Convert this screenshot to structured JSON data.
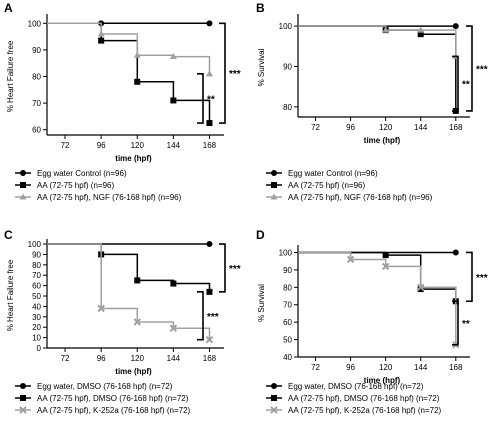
{
  "chart_data": [
    {
      "panel": "A",
      "type": "line",
      "ylabel": "% Heart Failure free",
      "xlabel": "time (hpf)",
      "xticks": [
        72,
        96,
        120,
        144,
        168
      ],
      "xlim": [
        60,
        175
      ],
      "yticks": [
        60,
        70,
        80,
        90,
        100
      ],
      "ylim": [
        58,
        102
      ],
      "series": [
        {
          "name": "Egg water Control (n=96)",
          "marker": "circle",
          "color": "#000000",
          "x": [
            96,
            168
          ],
          "y": [
            100,
            100
          ],
          "step": [
            [
              60,
              100
            ],
            [
              96,
              100
            ],
            [
              168,
              100
            ]
          ]
        },
        {
          "name": "AA (72-75 hpf) (n=96)",
          "marker": "square",
          "color": "#000000",
          "x": [
            96,
            120,
            144,
            168
          ],
          "y": [
            93.5,
            78,
            71,
            62.5
          ],
          "step": [
            [
              60,
              100
            ],
            [
              96,
              100
            ],
            [
              96,
              93.5
            ],
            [
              120,
              93.5
            ],
            [
              120,
              78
            ],
            [
              144,
              78
            ],
            [
              144,
              71
            ],
            [
              168,
              71
            ],
            [
              168,
              62.5
            ]
          ]
        },
        {
          "name": "AA (72-75 hpf), NGF (76-168 hpf) (n=96)",
          "marker": "triangle",
          "color": "#a0a0a0",
          "x": [
            96,
            120,
            144,
            168
          ],
          "y": [
            96,
            88,
            87.5,
            81
          ],
          "step": [
            [
              60,
              100
            ],
            [
              96,
              100
            ],
            [
              96,
              96
            ],
            [
              120,
              96
            ],
            [
              120,
              88
            ],
            [
              144,
              88
            ],
            [
              144,
              87.5
            ],
            [
              168,
              87.5
            ],
            [
              168,
              81
            ]
          ]
        }
      ],
      "brackets": [
        {
          "label": "***",
          "y_top": 100,
          "y_bottom": 62.5,
          "outer": true
        },
        {
          "label": "**",
          "y_top": 81,
          "y_bottom": 62.5,
          "outer": false
        }
      ]
    },
    {
      "panel": "B",
      "type": "line",
      "ylabel": "% Survival",
      "xlabel": "time (hpf)",
      "xticks": [
        72,
        96,
        120,
        144,
        168
      ],
      "xlim": [
        60,
        175
      ],
      "yticks": [
        80,
        90,
        100
      ],
      "ylim": [
        77.5,
        102
      ],
      "series": [
        {
          "name": "Egg water Control (n=96)",
          "marker": "circle",
          "color": "#000000",
          "x": [
            168
          ],
          "y": [
            100
          ],
          "step": [
            [
              60,
              100
            ],
            [
              168,
              100
            ]
          ]
        },
        {
          "name": "AA (72-75 hpf) (n=96)",
          "marker": "square",
          "color": "#000000",
          "x": [
            120,
            144,
            168
          ],
          "y": [
            99,
            98,
            79
          ],
          "step": [
            [
              60,
              100
            ],
            [
              120,
              100
            ],
            [
              120,
              99
            ],
            [
              144,
              99
            ],
            [
              144,
              98
            ],
            [
              168,
              98
            ],
            [
              168,
              79
            ]
          ]
        },
        {
          "name": "AA (72-75 hpf), NGF (76-168 hpf) (n=96)",
          "marker": "triangle",
          "color": "#a0a0a0",
          "x": [
            120,
            144,
            168
          ],
          "y": [
            99,
            99,
            92.5
          ],
          "step": [
            [
              60,
              100
            ],
            [
              120,
              100
            ],
            [
              120,
              99
            ],
            [
              144,
              99
            ],
            [
              168,
              99
            ],
            [
              168,
              92.5
            ]
          ]
        }
      ],
      "brackets": [
        {
          "label": "***",
          "y_top": 100,
          "y_bottom": 79,
          "outer": true
        },
        {
          "label": "**",
          "y_top": 92.5,
          "y_bottom": 79,
          "outer": false
        }
      ]
    },
    {
      "panel": "C",
      "type": "line",
      "ylabel": "% Heart Failure free",
      "xlabel": "time (hpf)",
      "xticks": [
        72,
        96,
        120,
        144,
        168
      ],
      "xlim": [
        60,
        175
      ],
      "yticks": [
        0,
        10,
        20,
        30,
        40,
        50,
        60,
        70,
        80,
        90,
        100
      ],
      "ylim": [
        0,
        101
      ],
      "series": [
        {
          "name": "Egg water, DMSO (76-168 hpf) (n=72)",
          "marker": "circle",
          "color": "#000000",
          "x": [
            168
          ],
          "y": [
            100
          ],
          "step": [
            [
              60,
              100
            ],
            [
              168,
              100
            ]
          ]
        },
        {
          "name": "AA (72-75 hpf), DMSO (76-168 hpf) (n=72)",
          "marker": "square",
          "color": "#000000",
          "x": [
            96,
            120,
            144,
            168
          ],
          "y": [
            90,
            65,
            62,
            54
          ],
          "step": [
            [
              60,
              100
            ],
            [
              96,
              100
            ],
            [
              96,
              90
            ],
            [
              120,
              90
            ],
            [
              120,
              65
            ],
            [
              144,
              65
            ],
            [
              144,
              62
            ],
            [
              168,
              62
            ],
            [
              168,
              54
            ]
          ]
        },
        {
          "name": "AA (72-75 hpf), K-252a (76-168 hpf) (n=72)",
          "marker": "cross",
          "color": "#a0a0a0",
          "x": [
            96,
            120,
            144,
            168
          ],
          "y": [
            38,
            25,
            19,
            8
          ],
          "step": [
            [
              60,
              100
            ],
            [
              96,
              100
            ],
            [
              96,
              38
            ],
            [
              120,
              38
            ],
            [
              120,
              25
            ],
            [
              144,
              25
            ],
            [
              144,
              19
            ],
            [
              168,
              19
            ],
            [
              168,
              8
            ]
          ]
        }
      ],
      "brackets": [
        {
          "label": "***",
          "y_top": 100,
          "y_bottom": 54,
          "outer": true
        },
        {
          "label": "***",
          "y_top": 54,
          "y_bottom": 8,
          "outer": false
        }
      ]
    },
    {
      "panel": "D",
      "type": "line",
      "ylabel": "% Survival",
      "xlabel": "time (hpf)",
      "xticks": [
        72,
        96,
        120,
        144,
        168
      ],
      "xlim": [
        60,
        175
      ],
      "yticks": [
        40,
        50,
        60,
        70,
        80,
        90,
        100
      ],
      "ylim": [
        40,
        102
      ],
      "series": [
        {
          "name": "Egg water, DMSO (76-168 hpf) (n=72)",
          "marker": "circle",
          "color": "#000000",
          "x": [
            168
          ],
          "y": [
            100
          ],
          "step": [
            [
              60,
              100
            ],
            [
              168,
              100
            ]
          ]
        },
        {
          "name": "AA (72-75 hpf), DMSO (76-168 hpf) (n=72)",
          "marker": "square",
          "color": "#000000",
          "x": [
            120,
            144,
            168
          ],
          "y": [
            98.5,
            79,
            72
          ],
          "step": [
            [
              60,
              100
            ],
            [
              120,
              100
            ],
            [
              120,
              98.5
            ],
            [
              144,
              98.5
            ],
            [
              144,
              79
            ],
            [
              168,
              79
            ],
            [
              168,
              72
            ]
          ]
        },
        {
          "name": "AA (72-75 hpf), K-252a (76-168 hpf) (n=72)",
          "marker": "cross",
          "color": "#a0a0a0",
          "x": [
            96,
            120,
            144,
            168
          ],
          "y": [
            96,
            92,
            80,
            47
          ],
          "step": [
            [
              60,
              100
            ],
            [
              96,
              100
            ],
            [
              96,
              96
            ],
            [
              120,
              96
            ],
            [
              120,
              92
            ],
            [
              144,
              92
            ],
            [
              144,
              80
            ],
            [
              168,
              80
            ],
            [
              168,
              47
            ]
          ]
        }
      ],
      "brackets": [
        {
          "label": "***",
          "y_top": 100,
          "y_bottom": 72,
          "outer": true
        },
        {
          "label": "**",
          "y_top": 72,
          "y_bottom": 47,
          "outer": false
        }
      ]
    }
  ]
}
